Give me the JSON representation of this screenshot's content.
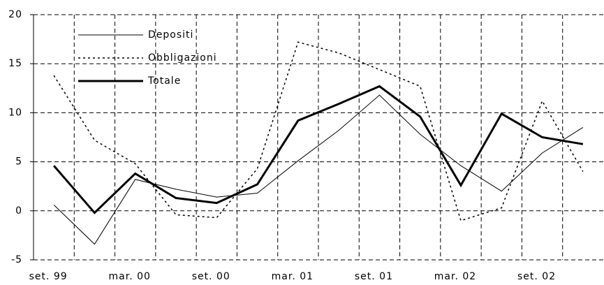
{
  "chart_data": {
    "type": "line",
    "categories": [
      "set. 99",
      null,
      "mar. 00",
      null,
      "set. 00",
      null,
      "mar. 01",
      null,
      "set. 01",
      null,
      "mar. 02",
      null,
      "set. 02",
      null
    ],
    "series": [
      {
        "name": "Depositi",
        "color": "#000000",
        "width": 1,
        "dash": "none",
        "values": [
          0.6,
          -3.4,
          3.2,
          2.2,
          1.4,
          1.8,
          5.1,
          8.2,
          11.8,
          7.8,
          4.6,
          2.0,
          5.9,
          8.5
        ]
      },
      {
        "name": "Obbligazioni",
        "color": "#000000",
        "width": 1.5,
        "dash": "3 4",
        "values": [
          13.8,
          7.2,
          4.8,
          -0.4,
          -0.7,
          4.3,
          17.2,
          16.1,
          14.4,
          12.7,
          -1.0,
          0.3,
          11.2,
          4.0
        ]
      },
      {
        "name": "Totale",
        "color": "#000000",
        "width": 3,
        "dash": "none",
        "values": [
          4.6,
          -0.2,
          3.8,
          1.3,
          0.8,
          2.7,
          9.2,
          10.9,
          12.7,
          9.6,
          2.6,
          9.9,
          7.5,
          6.8
        ]
      }
    ],
    "ylim": [
      -5,
      20
    ],
    "yticks": [
      -5,
      0,
      5,
      10,
      15,
      20
    ],
    "grid": true
  }
}
